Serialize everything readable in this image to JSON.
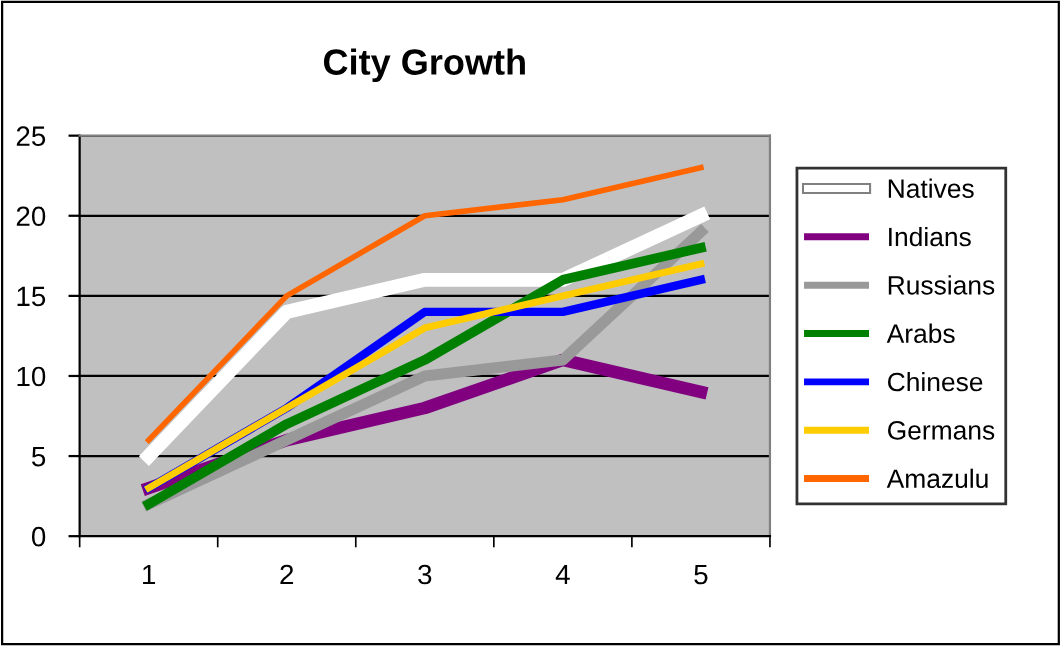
{
  "chart_data": {
    "type": "line",
    "title": "City Growth",
    "categories": [
      "1",
      "2",
      "3",
      "4",
      "5"
    ],
    "series": [
      {
        "name": "Natives",
        "color": "#ffffff",
        "values": [
          5,
          14,
          16,
          16,
          20
        ]
      },
      {
        "name": "Indians",
        "color": "#800080",
        "values": [
          3,
          6,
          8,
          11,
          9
        ]
      },
      {
        "name": "Russians",
        "color": "#999999",
        "values": [
          2,
          6,
          10,
          11,
          19
        ]
      },
      {
        "name": "Arabs",
        "color": "#008000",
        "values": [
          2,
          7,
          11,
          16,
          18
        ]
      },
      {
        "name": "Chinese",
        "color": "#0000ff",
        "values": [
          3,
          8,
          14,
          14,
          16
        ]
      },
      {
        "name": "Germans",
        "color": "#ffcc00",
        "values": [
          3,
          8,
          13,
          15,
          17
        ]
      },
      {
        "name": "Amazulu",
        "color": "#ff6600",
        "values": [
          6,
          15,
          20,
          21,
          23
        ]
      }
    ],
    "ylim": [
      0,
      25
    ],
    "yticks": [
      0,
      5,
      10,
      15,
      20,
      25
    ],
    "grid": "y",
    "legend": "right",
    "marker": "none",
    "line_style": "solid"
  }
}
